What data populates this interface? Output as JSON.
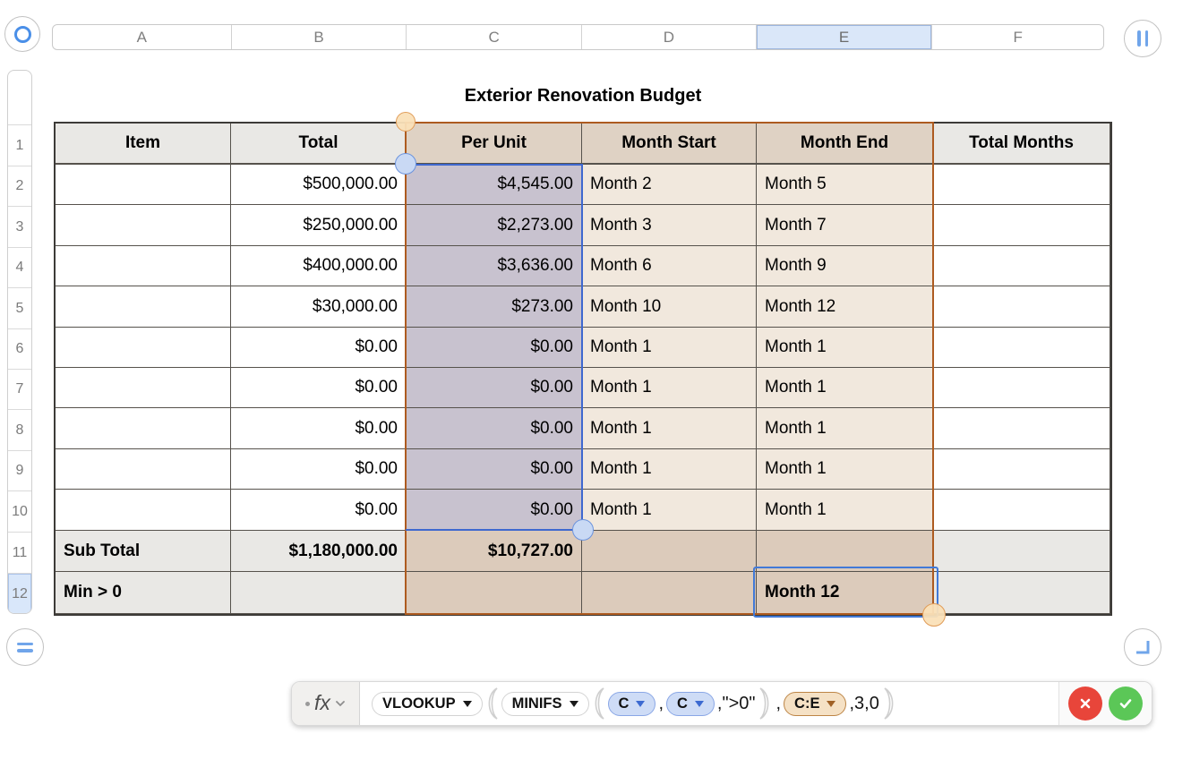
{
  "title": "Exterior Renovation Budget",
  "column_headers": {
    "letters": [
      "A",
      "B",
      "C",
      "D",
      "E",
      "F"
    ],
    "selected": "E"
  },
  "row_headers": {
    "numbers": [
      "1",
      "2",
      "3",
      "4",
      "5",
      "6",
      "7",
      "8",
      "9",
      "10",
      "11",
      "12"
    ],
    "selected": "12"
  },
  "table": {
    "columns": [
      "Item",
      "Total",
      "Per Unit",
      "Month Start",
      "Month End",
      "Total Months"
    ],
    "rows": [
      [
        "",
        "$500,000.00",
        "$4,545.00",
        "Month 2",
        "Month 5",
        ""
      ],
      [
        "",
        "$250,000.00",
        "$2,273.00",
        "Month 3",
        "Month 7",
        ""
      ],
      [
        "",
        "$400,000.00",
        "$3,636.00",
        "Month 6",
        "Month 9",
        ""
      ],
      [
        "",
        "$30,000.00",
        "$273.00",
        "Month 10",
        "Month 12",
        ""
      ],
      [
        "",
        "$0.00",
        "$0.00",
        "Month 1",
        "Month 1",
        ""
      ],
      [
        "",
        "$0.00",
        "$0.00",
        "Month 1",
        "Month 1",
        ""
      ],
      [
        "",
        "$0.00",
        "$0.00",
        "Month 1",
        "Month 1",
        ""
      ],
      [
        "",
        "$0.00",
        "$0.00",
        "Month 1",
        "Month 1",
        ""
      ],
      [
        "",
        "$0.00",
        "$0.00",
        "Month 1",
        "Month 1",
        ""
      ]
    ],
    "footer_rows": [
      [
        "Sub Total",
        "$1,180,000.00",
        "$10,727.00",
        "",
        "",
        ""
      ],
      [
        "Min > 0",
        "",
        "",
        "",
        "Month 12",
        ""
      ]
    ]
  },
  "formula_bar": {
    "fx_label": "fx",
    "tokens": [
      {
        "type": "func",
        "label": "VLOOKUP"
      },
      {
        "type": "open"
      },
      {
        "type": "func",
        "label": "MINIFS"
      },
      {
        "type": "open"
      },
      {
        "type": "ref_blue",
        "label": "C"
      },
      {
        "type": "text",
        "label": ","
      },
      {
        "type": "ref_blue",
        "label": "C"
      },
      {
        "type": "text",
        "label": ",\">0\""
      },
      {
        "type": "close"
      },
      {
        "type": "text",
        "label": ","
      },
      {
        "type": "ref_orange",
        "label": "C:E"
      },
      {
        "type": "text",
        "label": ",3,0"
      },
      {
        "type": "close"
      }
    ]
  },
  "colors": {
    "selection_blue": "#3e68cf",
    "selection_orange": "#ad5b20",
    "cancel_red": "#e8453a",
    "confirm_green": "#5bc757"
  }
}
